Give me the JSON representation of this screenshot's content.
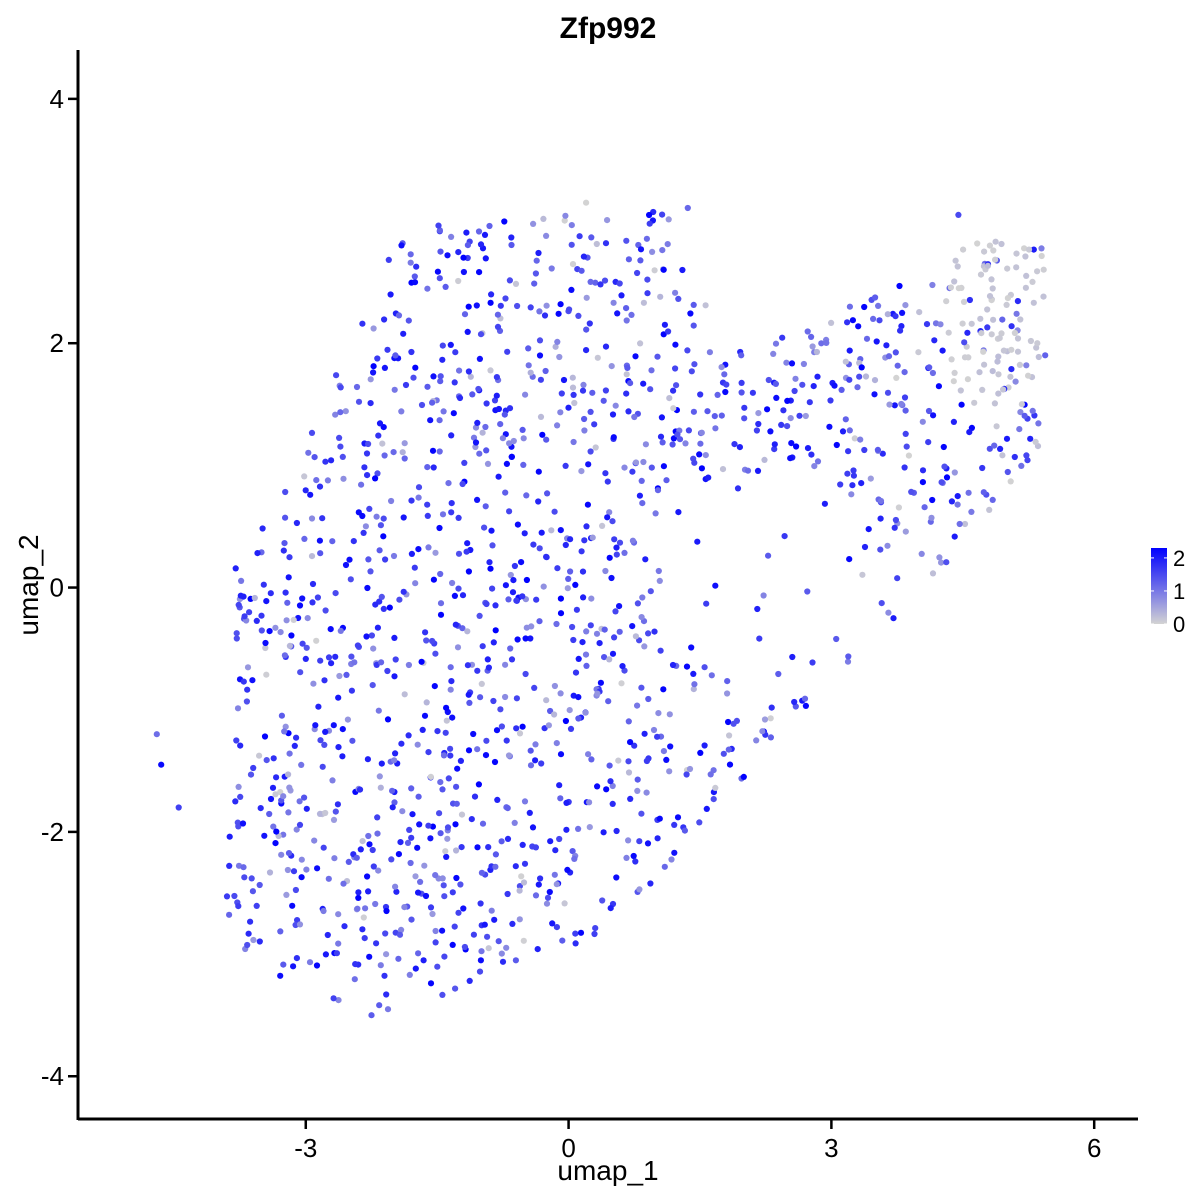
{
  "chart_data": {
    "type": "scatter",
    "title": "Zfp992",
    "xlabel": "umap_1",
    "ylabel": "umap_2",
    "xlim": [
      -5.6,
      6.5
    ],
    "ylim": [
      -4.35,
      4.4
    ],
    "x_ticks": [
      -3,
      0,
      3,
      6
    ],
    "y_ticks": [
      -4,
      -2,
      0,
      2,
      4
    ],
    "x_tick_labels": [
      "-3",
      "0",
      "3",
      "6"
    ],
    "y_tick_labels": [
      "-4",
      "-2",
      "0",
      "2",
      "4"
    ],
    "grid": false,
    "legend": {
      "placement": "right",
      "type": "colorbar",
      "min": 0,
      "max": 2.3,
      "ticks": [
        0,
        1,
        2
      ],
      "tick_labels": [
        "0",
        "1",
        "2"
      ],
      "low_color": "#D3D3D3",
      "high_color": "#0000FF"
    },
    "colors": {
      "low": "#D3D3D3",
      "high": "#0000FF"
    },
    "points_description": "Approx. 1500 cells; expression mostly 0.8-2.3; zero-expression cells concentrated near upper right (x≈4.3–5.3, y≈1.5–2.9).",
    "anchor_points": [
      {
        "x": -4.7,
        "y": -1.2,
        "v": 1.1
      },
      {
        "x": -4.65,
        "y": -1.45,
        "v": 2.2
      },
      {
        "x": -4.45,
        "y": -1.8,
        "v": 1.6
      },
      {
        "x": -2.25,
        "y": -3.5,
        "v": 1.3
      },
      {
        "x": 0.2,
        "y": 3.15,
        "v": 0.0
      },
      {
        "x": 4.45,
        "y": 3.05,
        "v": 1.5
      },
      {
        "x": 5.35,
        "y": 2.0,
        "v": 0.1
      },
      {
        "x": -1.2,
        "y": 2.7,
        "v": 2.3
      },
      {
        "x": -0.3,
        "y": 1.25,
        "v": 2.3
      },
      {
        "x": 2.0,
        "y": -1.55,
        "v": 2.3
      }
    ]
  }
}
